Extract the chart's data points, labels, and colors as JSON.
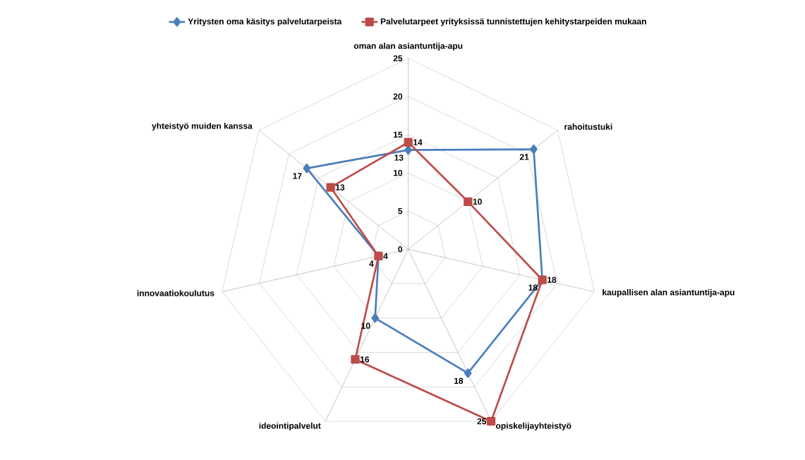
{
  "chart_data": {
    "type": "radar",
    "categories": [
      "oman alan asiantuntija-apu",
      "rahoitustuki",
      "kaupallisen alan asiantuntija-apu",
      "opiskelijayhteistyö",
      "ideointipalvelut",
      "innovaatiokoulutus",
      "yhteistyö muiden kanssa"
    ],
    "series": [
      {
        "name": "Yritysten oma käsitys palvelutarpeista",
        "color": "#4a7ebb",
        "marker": "diamond",
        "values": [
          13,
          21,
          18,
          18,
          10,
          4,
          17
        ]
      },
      {
        "name": "Palvelutarpeet yrityksissä tunnistettujen kehitystarpeiden mukaan",
        "color": "#be4b48",
        "marker": "square",
        "values": [
          14,
          10,
          18,
          25,
          16,
          4,
          13
        ]
      }
    ],
    "ylim": [
      0,
      25
    ],
    "yticks": [
      0,
      5,
      10,
      15,
      20,
      25
    ],
    "grid": true,
    "legend": "top",
    "data_labels": true
  }
}
